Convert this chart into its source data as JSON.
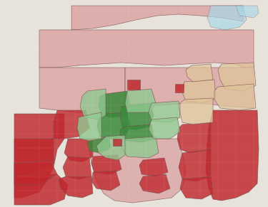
{
  "figsize": [
    3.75,
    2.91
  ],
  "dpi": 100,
  "map_bg": "#e8e3da",
  "outside_bg": "#ddd8ce",
  "colors": {
    "holder_strong": "#c0282d",
    "holder_light": "#daa0a0",
    "paolatto_strong": "#d4883a",
    "paolatto_light": "#dfc49a",
    "park_strong": "#3a8a3a",
    "park_light": "#90c890",
    "cheng_strong": "#3a5ac0",
    "cheng_light": "#8aaae0"
  },
  "edge_color": "#7a5050",
  "edge_lw": 0.5,
  "alpha": 0.72
}
